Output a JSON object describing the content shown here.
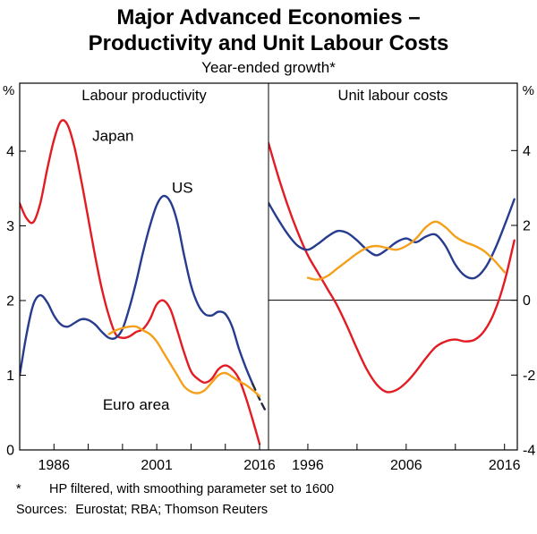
{
  "page": {
    "title_line1": "Major Advanced Economies –",
    "title_line2": "Productivity and Unit Labour Costs",
    "subtitle": "Year-ended growth*",
    "footnote_marker": "*",
    "footnote_text": "HP filtered, with smoothing parameter set to 1600",
    "sources_label": "Sources:",
    "sources_text": "Eurostat; RBA; Thomson Reuters"
  },
  "chart_data": {
    "type": "line",
    "unit": "%",
    "panels": [
      {
        "title": "Labour productivity",
        "x_range": [
          1981,
          2017.3
        ],
        "y_range": [
          0,
          4.91
        ],
        "y_ticks": [
          0,
          1,
          2,
          3,
          4
        ],
        "y_axis_side": "left",
        "x_ticks": [
          1986,
          1991,
          1996,
          2001,
          2006,
          2011,
          2016
        ],
        "x_tick_labels": [
          1986,
          2001,
          2016
        ],
        "zero_line": false,
        "series": [
          {
            "name": "Japan",
            "color": "#e31b23",
            "start_year": 1981,
            "values": [
              3.3,
              3.1,
              3.05,
              3.3,
              3.75,
              4.15,
              4.4,
              4.35,
              4.05,
              3.6,
              3.1,
              2.6,
              2.15,
              1.8,
              1.55,
              1.5,
              1.52,
              1.58,
              1.62,
              1.75,
              1.95,
              2.0,
              1.88,
              1.6,
              1.3,
              1.05,
              0.95,
              0.9,
              0.95,
              1.08,
              1.13,
              1.08,
              0.95,
              0.7,
              0.4,
              0.08
            ]
          },
          {
            "name": "US",
            "color": "#273b8f",
            "start_year": 1981,
            "dash_from": 2015,
            "tail_color": "#232a3e",
            "values": [
              1.0,
              1.55,
              1.95,
              2.07,
              1.98,
              1.8,
              1.68,
              1.65,
              1.7,
              1.75,
              1.74,
              1.68,
              1.58,
              1.5,
              1.5,
              1.62,
              1.9,
              2.25,
              2.65,
              3.0,
              3.28,
              3.4,
              3.32,
              3.05,
              2.6,
              2.2,
              1.95,
              1.82,
              1.8,
              1.85,
              1.82,
              1.65,
              1.35,
              1.1,
              0.88,
              0.68,
              0.5
            ]
          },
          {
            "name": "Euro area",
            "color": "#f5a01a",
            "start_year": 1994,
            "values": [
              1.55,
              1.6,
              1.63,
              1.65,
              1.65,
              1.6,
              1.55,
              1.45,
              1.3,
              1.15,
              1.0,
              0.85,
              0.78,
              0.76,
              0.8,
              0.9,
              1.0,
              1.03,
              0.98,
              0.92,
              0.87,
              0.8,
              0.72
            ]
          }
        ],
        "annotations": [
          {
            "text": "Japan",
            "x": 1991.6,
            "y": 4.2,
            "color": "#e31b23",
            "anchor": "start"
          },
          {
            "text": "US",
            "x": 2003.2,
            "y": 3.5,
            "color": "#273b8f",
            "anchor": "start"
          },
          {
            "text": "Euro area",
            "x": 1998,
            "y": 0.6,
            "color": "#f5a01a",
            "anchor": "middle"
          }
        ]
      },
      {
        "title": "Unit labour costs",
        "x_range": [
          1992,
          2017.3
        ],
        "y_range": [
          -4,
          5.8
        ],
        "y_ticks": [
          4,
          2,
          0,
          -2,
          -4
        ],
        "y_axis_side": "right",
        "x_ticks": [
          1996,
          2001,
          2006,
          2011,
          2016
        ],
        "x_tick_labels": [
          1996,
          2006,
          2016
        ],
        "zero_line": true,
        "series": [
          {
            "name": "Japan",
            "color": "#e31b23",
            "start_year": 1992,
            "values": [
              4.2,
              3.3,
              2.5,
              1.8,
              1.2,
              0.75,
              0.3,
              -0.15,
              -0.7,
              -1.3,
              -1.85,
              -2.25,
              -2.45,
              -2.4,
              -2.2,
              -1.9,
              -1.55,
              -1.25,
              -1.1,
              -1.05,
              -1.1,
              -1.05,
              -0.8,
              -0.3,
              0.5,
              1.6
            ]
          },
          {
            "name": "US",
            "color": "#273b8f",
            "start_year": 1992,
            "values": [
              2.6,
              2.15,
              1.75,
              1.45,
              1.35,
              1.5,
              1.7,
              1.85,
              1.8,
              1.6,
              1.35,
              1.2,
              1.35,
              1.55,
              1.65,
              1.55,
              1.7,
              1.75,
              1.45,
              0.95,
              0.65,
              0.6,
              0.85,
              1.35,
              2.0,
              2.7
            ]
          },
          {
            "name": "Euro area",
            "color": "#f5a01a",
            "start_year": 1996,
            "values": [
              0.6,
              0.55,
              0.65,
              0.85,
              1.05,
              1.25,
              1.4,
              1.45,
              1.4,
              1.35,
              1.45,
              1.65,
              1.95,
              2.1,
              1.95,
              1.7,
              1.55,
              1.45,
              1.3,
              1.05,
              0.75
            ]
          }
        ],
        "annotations": []
      }
    ]
  }
}
